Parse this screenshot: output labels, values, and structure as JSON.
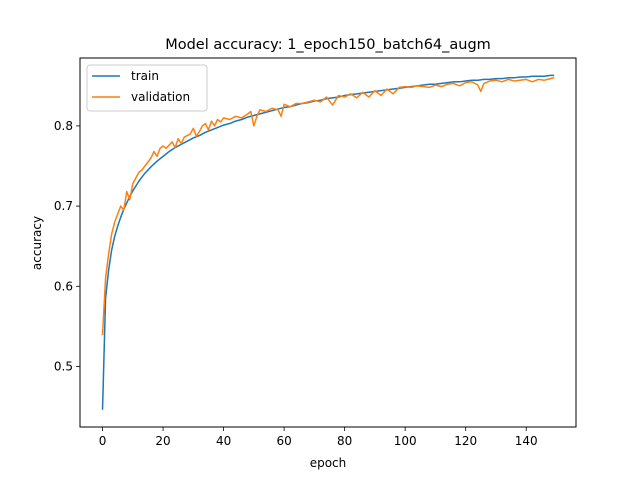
{
  "chart_data": {
    "type": "line",
    "title": "Model accuracy: 1_epoch150_batch64_augm",
    "xlabel": "epoch",
    "ylabel": "accuracy",
    "xlim": [
      -7.45,
      156.45
    ],
    "ylim": [
      0.4245,
      0.8847
    ],
    "x_ticks": [
      0,
      20,
      40,
      60,
      80,
      100,
      120,
      140
    ],
    "y_ticks": [
      0.5,
      0.6,
      0.7,
      0.8
    ],
    "legend_position": "upper-left",
    "grid": false,
    "series": [
      {
        "name": "train",
        "color": "#1f77b4",
        "x": [
          0,
          1,
          2,
          3,
          4,
          5,
          6,
          7,
          8,
          9,
          10,
          12,
          14,
          16,
          18,
          20,
          22,
          24,
          26,
          28,
          30,
          32,
          34,
          36,
          38,
          40,
          42,
          44,
          46,
          48,
          50,
          52,
          54,
          56,
          58,
          60,
          62,
          64,
          66,
          68,
          70,
          72,
          74,
          76,
          78,
          80,
          82,
          84,
          86,
          88,
          90,
          92,
          94,
          96,
          98,
          100,
          102,
          104,
          106,
          108,
          110,
          112,
          114,
          116,
          118,
          120,
          122,
          124,
          126,
          128,
          130,
          132,
          134,
          136,
          138,
          140,
          142,
          144,
          146,
          148,
          149
        ],
        "values": [
          0.447,
          0.585,
          0.62,
          0.645,
          0.662,
          0.675,
          0.686,
          0.696,
          0.704,
          0.712,
          0.719,
          0.731,
          0.741,
          0.749,
          0.756,
          0.762,
          0.768,
          0.773,
          0.777,
          0.781,
          0.785,
          0.788,
          0.792,
          0.795,
          0.798,
          0.801,
          0.803,
          0.806,
          0.808,
          0.811,
          0.813,
          0.815,
          0.817,
          0.819,
          0.821,
          0.823,
          0.824,
          0.826,
          0.828,
          0.829,
          0.831,
          0.832,
          0.834,
          0.835,
          0.836,
          0.838,
          0.839,
          0.84,
          0.841,
          0.842,
          0.843,
          0.844,
          0.845,
          0.846,
          0.847,
          0.848,
          0.849,
          0.85,
          0.851,
          0.852,
          0.852,
          0.853,
          0.854,
          0.855,
          0.855,
          0.856,
          0.857,
          0.857,
          0.858,
          0.858,
          0.859,
          0.859,
          0.86,
          0.86,
          0.861,
          0.861,
          0.862,
          0.862,
          0.862,
          0.863,
          0.863
        ]
      },
      {
        "name": "validation",
        "color": "#ff7f0e",
        "x": [
          0,
          1,
          2,
          3,
          4,
          5,
          6,
          7,
          8,
          9,
          10,
          11,
          12,
          13,
          14,
          15,
          16,
          17,
          18,
          19,
          20,
          21,
          22,
          23,
          24,
          25,
          26,
          27,
          28,
          29,
          30,
          31,
          32,
          33,
          34,
          35,
          36,
          37,
          38,
          39,
          40,
          42,
          44,
          46,
          48,
          49,
          50,
          51,
          52,
          54,
          56,
          58,
          59,
          60,
          62,
          64,
          66,
          68,
          70,
          72,
          74,
          76,
          78,
          80,
          82,
          84,
          86,
          88,
          90,
          92,
          94,
          96,
          98,
          100,
          102,
          104,
          106,
          108,
          110,
          112,
          114,
          116,
          118,
          120,
          122,
          124,
          125,
          126,
          128,
          130,
          132,
          134,
          136,
          138,
          140,
          142,
          144,
          146,
          148,
          149
        ],
        "values": [
          0.54,
          0.61,
          0.64,
          0.665,
          0.68,
          0.69,
          0.7,
          0.695,
          0.718,
          0.708,
          0.728,
          0.735,
          0.742,
          0.745,
          0.75,
          0.755,
          0.76,
          0.768,
          0.762,
          0.772,
          0.775,
          0.772,
          0.776,
          0.78,
          0.773,
          0.784,
          0.778,
          0.786,
          0.788,
          0.79,
          0.797,
          0.787,
          0.793,
          0.8,
          0.803,
          0.795,
          0.806,
          0.8,
          0.808,
          0.805,
          0.81,
          0.808,
          0.812,
          0.81,
          0.815,
          0.818,
          0.8,
          0.812,
          0.82,
          0.818,
          0.822,
          0.82,
          0.812,
          0.827,
          0.824,
          0.828,
          0.828,
          0.83,
          0.832,
          0.83,
          0.836,
          0.826,
          0.838,
          0.836,
          0.84,
          0.835,
          0.842,
          0.836,
          0.844,
          0.838,
          0.846,
          0.84,
          0.848,
          0.849,
          0.848,
          0.85,
          0.849,
          0.848,
          0.851,
          0.849,
          0.852,
          0.853,
          0.85,
          0.854,
          0.855,
          0.851,
          0.843,
          0.853,
          0.856,
          0.857,
          0.855,
          0.858,
          0.856,
          0.857,
          0.858,
          0.855,
          0.858,
          0.857,
          0.859,
          0.86
        ]
      }
    ]
  }
}
